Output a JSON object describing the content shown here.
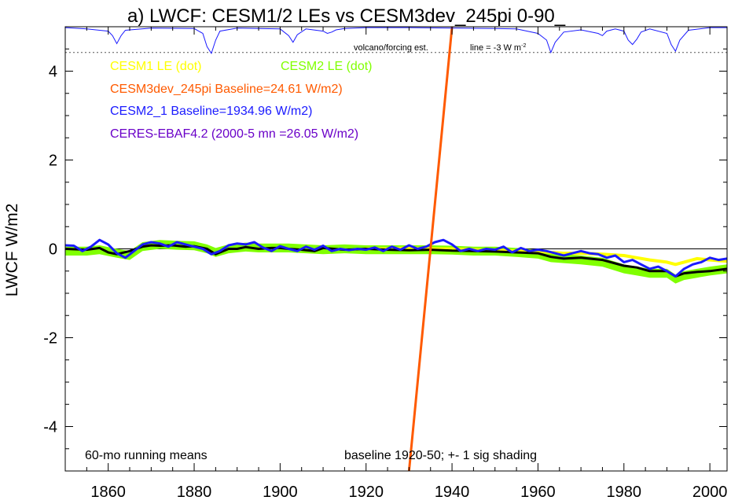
{
  "chart_data": {
    "type": "line",
    "title": "a) LWCF: CESM1/2 LEs vs CESM3dev_245pi 0-90_",
    "xlabel": "",
    "ylabel": "LWCF W/m2",
    "xlim": [
      1850,
      2004
    ],
    "ylim": [
      -5,
      5
    ],
    "x_ticks": [
      1860,
      1880,
      1900,
      1920,
      1940,
      1960,
      1980,
      2000
    ],
    "y_ticks": [
      -4,
      -2,
      0,
      2,
      4
    ],
    "grid": false,
    "legend_position": "top-left",
    "legend": [
      {
        "label": "CESM1 LE (dot)",
        "color": "#ffff00"
      },
      {
        "label": "CESM2 LE (dot)",
        "color": "#80ff00"
      },
      {
        "label": "CESM3dev_245pi Baseline=24.61 W/m2)",
        "color": "#ff5a00"
      },
      {
        "label": "CESM2_1 Baseline=1934.96 W/m2)",
        "color": "#1a1aff"
      },
      {
        "label": "CERES-EBAF4.2 (2000-5 mn =26.05 W/m2)",
        "color": "#6a00c8"
      }
    ],
    "annotations": {
      "volcano_label": "volcano/forcing est.",
      "line_label": "line = -3 W m",
      "line_label_sup": "-2",
      "running_mean": "60-mo running means",
      "baseline_note": "baseline 1920-50; +- 1 sig shading"
    },
    "volcano_reference_y": 4.42,
    "series": [
      {
        "name": "CESM2 LE (dot)",
        "color": "#80ff00",
        "kind": "band",
        "x": [
          1850,
          1855,
          1858,
          1862,
          1865,
          1868,
          1872,
          1876,
          1880,
          1883,
          1885,
          1888,
          1892,
          1895,
          1898,
          1902,
          1906,
          1910,
          1915,
          1920,
          1925,
          1930,
          1935,
          1940,
          1945,
          1950,
          1955,
          1960,
          1963,
          1966,
          1970,
          1975,
          1980,
          1983,
          1986,
          1990,
          1992,
          1994,
          1997,
          2000,
          2004
        ],
        "values": [
          -0.05,
          -0.05,
          -0.02,
          -0.1,
          -0.15,
          0.05,
          0.1,
          0.08,
          0.07,
          0.0,
          -0.08,
          0.0,
          0.04,
          0.02,
          0.02,
          0.02,
          0.0,
          -0.02,
          0.0,
          -0.02,
          -0.02,
          -0.02,
          -0.02,
          -0.03,
          -0.05,
          -0.05,
          -0.08,
          -0.12,
          -0.2,
          -0.22,
          -0.25,
          -0.3,
          -0.45,
          -0.5,
          -0.55,
          -0.55,
          -0.68,
          -0.6,
          -0.55,
          -0.5,
          -0.45
        ],
        "spread": 0.1
      },
      {
        "name": "CESM1 LE (dot)",
        "color": "#ffff00",
        "kind": "line",
        "x": [
          1920,
          1925,
          1930,
          1935,
          1940,
          1945,
          1950,
          1955,
          1960,
          1963,
          1966,
          1970,
          1975,
          1980,
          1983,
          1986,
          1990,
          1992,
          1994,
          1997,
          2000,
          2004
        ],
        "values": [
          0.0,
          0.0,
          0.02,
          0.0,
          0.0,
          -0.02,
          -0.03,
          -0.05,
          -0.05,
          -0.08,
          -0.1,
          -0.1,
          -0.12,
          -0.15,
          -0.2,
          -0.25,
          -0.3,
          -0.35,
          -0.3,
          -0.22,
          -0.25,
          -0.28
        ]
      },
      {
        "name": "Ensemble mean",
        "color": "#000000",
        "kind": "line",
        "x": [
          1850,
          1855,
          1858,
          1860,
          1862,
          1865,
          1868,
          1870,
          1872,
          1875,
          1878,
          1880,
          1883,
          1885,
          1888,
          1890,
          1892,
          1895,
          1898,
          1900,
          1902,
          1905,
          1908,
          1910,
          1915,
          1920,
          1925,
          1930,
          1935,
          1940,
          1945,
          1950,
          1955,
          1960,
          1963,
          1966,
          1970,
          1975,
          1980,
          1983,
          1986,
          1990,
          1992,
          1994,
          1997,
          2000,
          2004
        ],
        "values": [
          0.0,
          -0.02,
          0.02,
          -0.08,
          -0.12,
          -0.05,
          0.05,
          0.08,
          0.07,
          0.08,
          0.05,
          0.06,
          0.0,
          -0.12,
          0.0,
          0.0,
          0.04,
          0.0,
          0.02,
          0.02,
          0.0,
          -0.02,
          -0.05,
          0.02,
          -0.02,
          0.0,
          -0.02,
          -0.03,
          -0.02,
          -0.04,
          -0.05,
          -0.06,
          -0.08,
          -0.1,
          -0.18,
          -0.22,
          -0.2,
          -0.25,
          -0.38,
          -0.42,
          -0.5,
          -0.5,
          -0.62,
          -0.55,
          -0.52,
          -0.5,
          -0.45
        ]
      },
      {
        "name": "CESM2_1 Baseline=1934.96 W/m2)",
        "color": "#1a1aff",
        "kind": "line",
        "x": [
          1850,
          1852,
          1854,
          1856,
          1858,
          1860,
          1862,
          1864,
          1866,
          1868,
          1870,
          1872,
          1874,
          1876,
          1878,
          1880,
          1882,
          1884,
          1886,
          1888,
          1890,
          1892,
          1894,
          1896,
          1898,
          1900,
          1902,
          1904,
          1906,
          1908,
          1910,
          1912,
          1914,
          1916,
          1918,
          1920,
          1922,
          1924,
          1926,
          1928,
          1930,
          1932,
          1934,
          1936,
          1938,
          1940,
          1942,
          1944,
          1946,
          1948,
          1950,
          1952,
          1954,
          1956,
          1958,
          1960,
          1962,
          1964,
          1966,
          1968,
          1970,
          1972,
          1974,
          1976,
          1978,
          1980,
          1982,
          1984,
          1986,
          1988,
          1990,
          1992,
          1994,
          1996,
          1998,
          2000,
          2002,
          2004
        ],
        "values": [
          0.08,
          0.07,
          -0.05,
          0.05,
          0.2,
          0.1,
          -0.1,
          -0.2,
          -0.05,
          0.1,
          0.15,
          0.12,
          0.05,
          0.15,
          0.1,
          0.05,
          0.0,
          -0.12,
          -0.05,
          0.08,
          0.12,
          0.1,
          0.15,
          0.03,
          -0.05,
          0.06,
          0.0,
          -0.05,
          0.05,
          -0.02,
          0.07,
          -0.05,
          0.0,
          -0.03,
          0.0,
          -0.02,
          0.03,
          -0.05,
          0.05,
          -0.02,
          0.08,
          0.0,
          0.05,
          0.15,
          0.2,
          0.1,
          -0.05,
          0.0,
          -0.05,
          0.0,
          -0.02,
          0.05,
          -0.08,
          0.02,
          -0.05,
          -0.02,
          -0.05,
          -0.1,
          -0.15,
          -0.1,
          -0.05,
          -0.1,
          -0.12,
          -0.2,
          -0.15,
          -0.3,
          -0.25,
          -0.35,
          -0.45,
          -0.4,
          -0.5,
          -0.62,
          -0.45,
          -0.35,
          -0.3,
          -0.2,
          -0.25,
          -0.22
        ]
      },
      {
        "name": "CESM3dev_245pi Baseline=24.61 W/m2)",
        "color": "#ff5a00",
        "kind": "line",
        "x": [
          1930,
          1940
        ],
        "values": [
          -5.0,
          5.0
        ]
      },
      {
        "name": "Volcanic forcing estimate",
        "color": "#1a1aff",
        "kind": "thin-line",
        "x": [
          1850,
          1855,
          1860,
          1861,
          1862,
          1863,
          1864,
          1870,
          1880,
          1882,
          1883,
          1884,
          1885,
          1886,
          1890,
          1900,
          1902,
          1903,
          1904,
          1906,
          1910,
          1911,
          1912,
          1913,
          1915,
          1920,
          1930,
          1940,
          1950,
          1955,
          1960,
          1962,
          1963,
          1964,
          1966,
          1970,
          1974,
          1975,
          1976,
          1978,
          1980,
          1981,
          1982,
          1983,
          1984,
          1986,
          1990,
          1991,
          1992,
          1993,
          1995,
          2000,
          2004
        ],
        "values": [
          4.98,
          4.95,
          4.9,
          4.8,
          4.62,
          4.8,
          4.92,
          4.97,
          4.96,
          4.85,
          4.55,
          4.4,
          4.7,
          4.9,
          4.97,
          4.95,
          4.8,
          4.65,
          4.82,
          4.95,
          4.9,
          4.85,
          4.88,
          4.93,
          4.96,
          4.98,
          4.98,
          4.97,
          4.96,
          4.95,
          4.85,
          4.7,
          4.42,
          4.65,
          4.88,
          4.93,
          4.85,
          4.8,
          4.9,
          4.95,
          4.9,
          4.7,
          4.6,
          4.72,
          4.88,
          4.95,
          4.85,
          4.6,
          4.45,
          4.7,
          4.92,
          4.98,
          4.98
        ]
      }
    ]
  }
}
